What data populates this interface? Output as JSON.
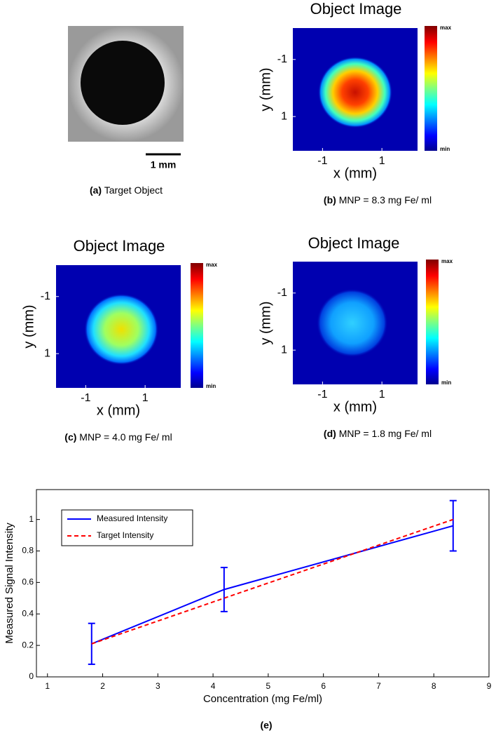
{
  "chart_data": [
    {
      "type": "photo",
      "caption_label": "(a)",
      "caption": "Target Object",
      "scale_bar": "1 mm"
    },
    {
      "type": "heatmap",
      "title": "Object Image",
      "xlabel": "x (mm)",
      "ylabel": "y (mm)",
      "xlim": [
        -2,
        2.2
      ],
      "ylim": [
        -2.1,
        2.2
      ],
      "xticks": [
        -1,
        1
      ],
      "yticks": [
        -1,
        1
      ],
      "colorbar_labels": [
        "max",
        "min"
      ],
      "caption_label": "(b)",
      "caption": "MNP = 8.3 mg Fe/ ml"
    },
    {
      "type": "heatmap",
      "title": "Object Image",
      "xlabel": "x (mm)",
      "ylabel": "y (mm)",
      "xlim": [
        -2,
        2.2
      ],
      "ylim": [
        -2.1,
        2.2
      ],
      "xticks": [
        -1,
        1
      ],
      "yticks": [
        -1,
        1
      ],
      "colorbar_labels": [
        "max",
        "min"
      ],
      "caption_label": "(c)",
      "caption": "MNP = 4.0 mg Fe/ ml"
    },
    {
      "type": "heatmap",
      "title": "Object Image",
      "xlabel": "x (mm)",
      "ylabel": "y (mm)",
      "xlim": [
        -2,
        2.2
      ],
      "ylim": [
        -2.1,
        2.2
      ],
      "xticks": [
        -1,
        1
      ],
      "yticks": [
        -1,
        1
      ],
      "colorbar_labels": [
        "max",
        "min"
      ],
      "caption_label": "(d)",
      "caption": "MNP = 1.8 mg Fe/ ml"
    },
    {
      "type": "line",
      "xlabel": "Concentration (mg Fe/ml)",
      "ylabel": "Measured Signal Intensity",
      "caption": "(e)",
      "xlim": [
        0.8,
        9
      ],
      "ylim": [
        0,
        1.19
      ],
      "xticks": [
        1,
        2,
        3,
        4,
        5,
        6,
        7,
        8,
        9
      ],
      "yticks": [
        0,
        0.2,
        0.4,
        0.6,
        0.8,
        1
      ],
      "legend": "upper left",
      "x": [
        1.8,
        4.2,
        8.35
      ],
      "series": [
        {
          "name": "Measured Intensity",
          "color": "#0000ff",
          "style": "solid",
          "values": [
            0.21,
            0.555,
            0.96
          ],
          "errors": [
            0.13,
            0.14,
            0.16
          ]
        },
        {
          "name": "Target Intensity",
          "color": "#ff0000",
          "style": "dashed",
          "values": [
            0.21,
            0.5,
            1.0
          ]
        }
      ]
    }
  ]
}
